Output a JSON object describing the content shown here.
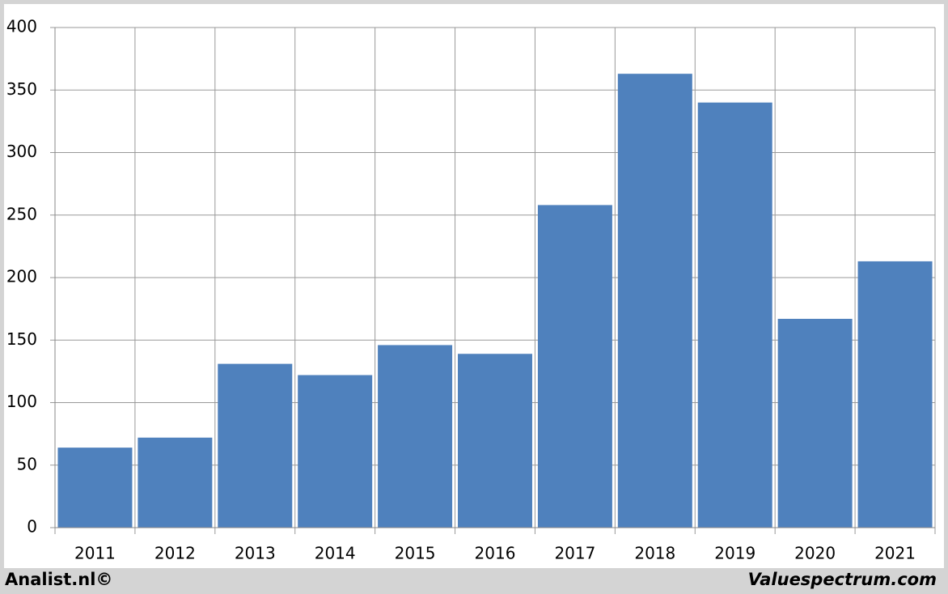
{
  "chart_data": {
    "type": "bar",
    "categories": [
      "2011",
      "2012",
      "2013",
      "2014",
      "2015",
      "2016",
      "2017",
      "2018",
      "2019",
      "2020",
      "2021"
    ],
    "values": [
      64,
      72,
      131,
      122,
      146,
      139,
      258,
      363,
      340,
      167,
      213
    ],
    "color": "#4f81bd",
    "ylim": [
      0,
      400
    ],
    "yticks": [
      0,
      50,
      100,
      150,
      200,
      250,
      300,
      350,
      400
    ],
    "grid": true,
    "footer_left": "Analist.nl©",
    "footer_right": "Valuespectrum.com"
  }
}
